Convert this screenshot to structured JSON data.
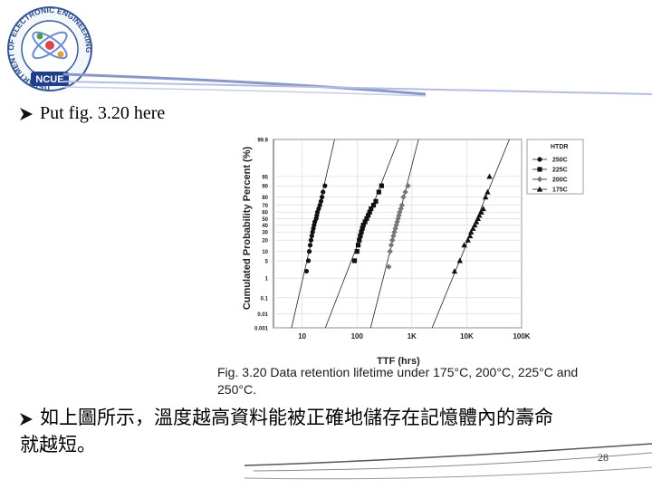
{
  "logo": {
    "ring_text": "DEPARTMENT OF ELECTRONIC ENGINEERING",
    "center_text": "NCUE"
  },
  "bullets": [
    {
      "text": "Put fig. 3.20 here"
    },
    {
      "line1": "如上圖所示，溫度越高資料能被正確地儲存在記憶體內的壽命",
      "line2": "就越短。"
    }
  ],
  "page_number": "28",
  "chart_data": {
    "type": "scatter",
    "x_scale": "log",
    "y_scale": "normal-probability",
    "xlabel": "TTF (hrs)",
    "ylabel": "Cumulated Probability Percent (%)",
    "xlim": [
      3,
      100000
    ],
    "x_ticks": [
      "10",
      "100",
      "1K",
      "10K",
      "100K"
    ],
    "y_ticks": [
      "99.9",
      "95",
      "90",
      "80",
      "70",
      "60",
      "50",
      "40",
      "30",
      "20",
      "10",
      "5",
      "1",
      "0.1",
      "0.01",
      "0.001"
    ],
    "legend_title": "HTDR",
    "legend_position": "top-right",
    "series": [
      {
        "name": "250C",
        "marker": "circle",
        "color": "#111111",
        "x": [
          12,
          13,
          13.5,
          14,
          14.5,
          15,
          15.5,
          16,
          16.5,
          17,
          18,
          18.5,
          19,
          20,
          21,
          22,
          23,
          24,
          26
        ],
        "y": [
          2,
          5,
          10,
          15,
          20,
          25,
          30,
          35,
          40,
          45,
          50,
          55,
          60,
          65,
          70,
          75,
          80,
          85,
          90
        ]
      },
      {
        "name": "225C",
        "marker": "square",
        "color": "#111111",
        "x": [
          90,
          100,
          105,
          110,
          115,
          120,
          125,
          130,
          140,
          150,
          160,
          170,
          180,
          200,
          220,
          250,
          280
        ],
        "y": [
          5,
          10,
          15,
          20,
          25,
          30,
          35,
          40,
          45,
          50,
          55,
          60,
          65,
          70,
          75,
          85,
          90
        ]
      },
      {
        "name": "200C",
        "marker": "diamond",
        "color": "#777777",
        "x": [
          380,
          400,
          420,
          440,
          460,
          480,
          500,
          520,
          540,
          560,
          580,
          600,
          630,
          660,
          700,
          760,
          850
        ],
        "y": [
          3,
          10,
          15,
          20,
          25,
          30,
          35,
          40,
          45,
          50,
          55,
          60,
          65,
          70,
          80,
          85,
          90
        ]
      },
      {
        "name": "175C",
        "marker": "triangle",
        "color": "#111111",
        "x": [
          6000,
          7500,
          9000,
          10500,
          11500,
          12000,
          13000,
          14000,
          15000,
          16000,
          17000,
          18500,
          20000,
          22000,
          24000,
          26000
        ],
        "y": [
          2,
          5,
          15,
          20,
          25,
          30,
          35,
          40,
          45,
          50,
          55,
          60,
          65,
          80,
          85,
          95
        ]
      }
    ],
    "caption": "Fig. 3.20 Data retention lifetime under 175°C, 200°C, 225°C and 250°C."
  }
}
